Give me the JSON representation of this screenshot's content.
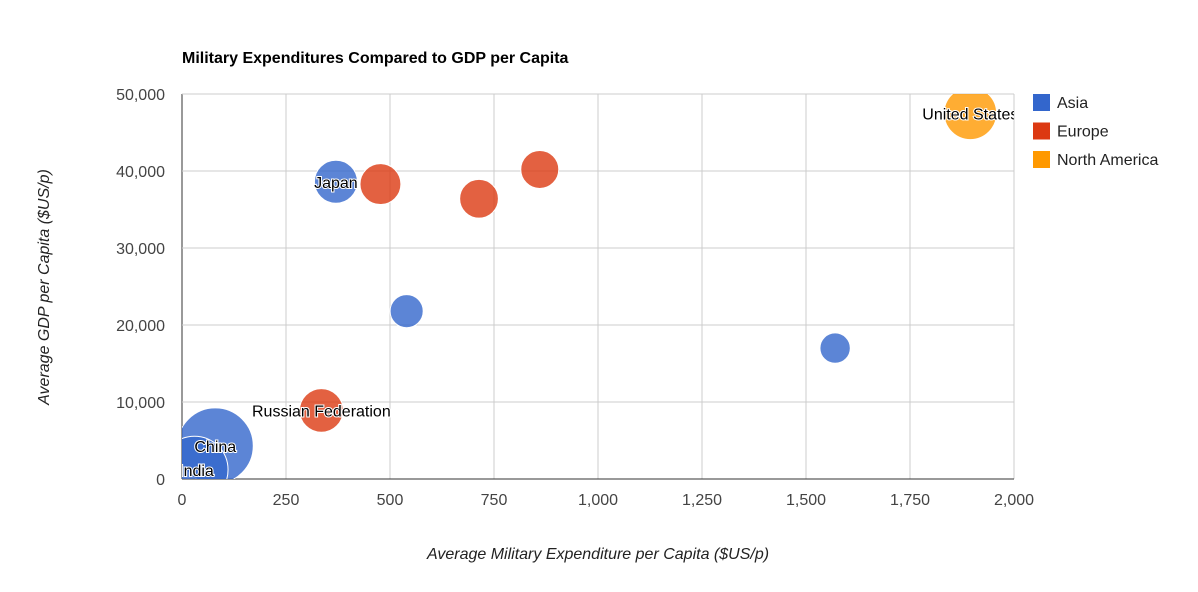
{
  "chart_data": {
    "type": "scatter",
    "variant": "bubble",
    "title": "Military Expenditures Compared to GDP per Capita",
    "xlabel": "Average Military Expenditure per Capita ($US/p)",
    "ylabel": "Average GDP per Capita ($US/p)",
    "xlim": [
      0,
      2000
    ],
    "ylim": [
      0,
      50000
    ],
    "x_ticks": [
      0,
      250,
      500,
      750,
      1000,
      1250,
      1500,
      1750,
      2000
    ],
    "y_ticks": [
      0,
      10000,
      20000,
      30000,
      40000,
      50000
    ],
    "x_tick_labels": [
      "0",
      "250",
      "500",
      "750",
      "1,000",
      "1,250",
      "1,500",
      "1,750",
      "2,000"
    ],
    "y_tick_labels": [
      "0",
      "10,000",
      "20,000",
      "30,000",
      "40,000",
      "50,000"
    ],
    "grid": true,
    "legend_position": "right",
    "series": [
      {
        "name": "Asia",
        "color": "#3366cc"
      },
      {
        "name": "Europe",
        "color": "#dc3912"
      },
      {
        "name": "North America",
        "color": "#ff9900"
      }
    ],
    "points": [
      {
        "label": "China",
        "series": "Asia",
        "x": 80,
        "y": 4300,
        "size_rel": 1.0
      },
      {
        "label": "India",
        "series": "Asia",
        "x": 30,
        "y": 1200,
        "size_rel": 0.78
      },
      {
        "label": "Japan",
        "series": "Asia",
        "x": 370,
        "y": 38600,
        "size_rel": 0.32
      },
      {
        "label": "",
        "series": "Asia",
        "x": 540,
        "y": 21800,
        "size_rel": 0.19
      },
      {
        "label": "",
        "series": "Asia",
        "x": 1570,
        "y": 17000,
        "size_rel": 0.16
      },
      {
        "label": "Russian Federation",
        "series": "Europe",
        "x": 335,
        "y": 8900,
        "size_rel": 0.33
      },
      {
        "label": "",
        "series": "Europe",
        "x": 477,
        "y": 38300,
        "size_rel": 0.29
      },
      {
        "label": "",
        "series": "Europe",
        "x": 714,
        "y": 36400,
        "size_rel": 0.26
      },
      {
        "label": "",
        "series": "Europe",
        "x": 860,
        "y": 40200,
        "size_rel": 0.25
      },
      {
        "label": "United States",
        "series": "North America",
        "x": 1895,
        "y": 47500,
        "size_rel": 0.48
      }
    ]
  }
}
